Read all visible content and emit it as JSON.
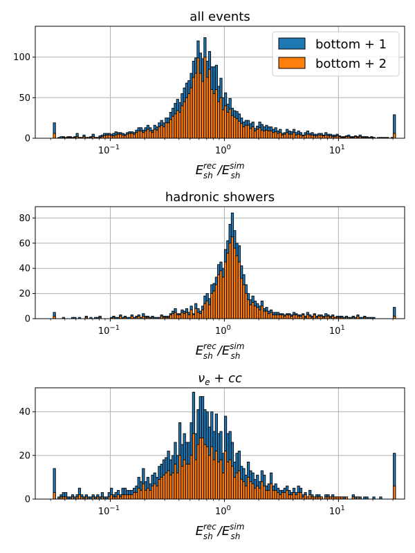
{
  "colors": {
    "series1": "#1f77b4",
    "series2": "#ff7f0e",
    "edge": "#000000",
    "grid": "#b0b0b0"
  },
  "legend": {
    "position": "top-right",
    "entries": [
      "bottom + 1",
      "bottom + 2"
    ]
  },
  "chart_data": [
    {
      "type": "bar",
      "title": "all events",
      "xlabel": "E_sh^rec / E_sh^sim",
      "x_scale": "log",
      "xlim": [
        0.022,
        38
      ],
      "ylim": [
        0,
        138
      ],
      "yticks": [
        0,
        50,
        100
      ],
      "xticks": [
        "10^-1",
        "10^0",
        "10^1"
      ],
      "grid": true,
      "bins": {
        "log10_start": -1.5,
        "log10_end": 1.5,
        "count": 150
      },
      "series": [
        {
          "name": "bottom + 1",
          "values": [
            19,
            0,
            1,
            2,
            2,
            1,
            2,
            2,
            1,
            2,
            6,
            1,
            1,
            4,
            1,
            1,
            2,
            5,
            1,
            1,
            3,
            4,
            6,
            6,
            6,
            5,
            6,
            8,
            7,
            7,
            6,
            5,
            7,
            8,
            8,
            7,
            10,
            13,
            13,
            10,
            13,
            16,
            13,
            10,
            16,
            14,
            19,
            22,
            19,
            25,
            25,
            32,
            37,
            43,
            48,
            44,
            55,
            62,
            68,
            71,
            80,
            95,
            99,
            120,
            105,
            98,
            124,
            95,
            107,
            88,
            88,
            90,
            64,
            74,
            50,
            56,
            42,
            49,
            37,
            34,
            33,
            30,
            25,
            20,
            22,
            22,
            18,
            20,
            12,
            15,
            20,
            17,
            14,
            16,
            14,
            14,
            11,
            13,
            9,
            11,
            6,
            7,
            11,
            9,
            8,
            11,
            7,
            9,
            7,
            4,
            7,
            9,
            6,
            7,
            5,
            5,
            6,
            6,
            4,
            7,
            5,
            5,
            4,
            4,
            5,
            3,
            2,
            2,
            3,
            4,
            2,
            2,
            3,
            2,
            4,
            2,
            2,
            2,
            1,
            2,
            1,
            0,
            1,
            1,
            1,
            1,
            1,
            0,
            1,
            29
          ]
        },
        {
          "name": "bottom + 2",
          "values": [
            6,
            0,
            0,
            0,
            1,
            1,
            1,
            1,
            1,
            1,
            2,
            1,
            1,
            2,
            1,
            1,
            1,
            2,
            1,
            1,
            1,
            2,
            3,
            4,
            4,
            3,
            3,
            4,
            5,
            5,
            4,
            3,
            5,
            6,
            6,
            5,
            7,
            9,
            9,
            7,
            9,
            11,
            9,
            7,
            11,
            10,
            14,
            16,
            14,
            19,
            19,
            23,
            27,
            30,
            34,
            32,
            40,
            45,
            50,
            55,
            62,
            75,
            80,
            99,
            80,
            70,
            100,
            75,
            85,
            60,
            55,
            60,
            45,
            50,
            35,
            40,
            32,
            36,
            28,
            26,
            24,
            21,
            18,
            14,
            16,
            16,
            12,
            14,
            9,
            11,
            13,
            10,
            9,
            10,
            9,
            9,
            7,
            8,
            6,
            7,
            4,
            5,
            7,
            5,
            5,
            7,
            4,
            5,
            4,
            3,
            4,
            5,
            4,
            4,
            3,
            3,
            4,
            4,
            3,
            4,
            3,
            3,
            2,
            2,
            3,
            2,
            1,
            1,
            2,
            2,
            1,
            1,
            2,
            1,
            2,
            1,
            1,
            1,
            1,
            1,
            1,
            0,
            0,
            1,
            0,
            0,
            1,
            0,
            0,
            6
          ]
        }
      ]
    },
    {
      "type": "bar",
      "title": "hadronic showers",
      "xlabel": "E_sh^rec / E_sh^sim",
      "x_scale": "log",
      "xlim": [
        0.022,
        38
      ],
      "ylim": [
        0,
        89
      ],
      "yticks": [
        0,
        20,
        40,
        60,
        80
      ],
      "xticks": [
        "10^-1",
        "10^0",
        "10^1"
      ],
      "grid": true,
      "bins": {
        "log10_start": -1.5,
        "log10_end": 1.5,
        "count": 150
      },
      "series": [
        {
          "name": "bottom + 1",
          "values": [
            5,
            0,
            0,
            0,
            1,
            0,
            0,
            0,
            1,
            1,
            0,
            1,
            0,
            0,
            2,
            0,
            1,
            0,
            1,
            1,
            2,
            0,
            0,
            0,
            0,
            1,
            2,
            1,
            1,
            3,
            1,
            2,
            1,
            1,
            3,
            1,
            2,
            3,
            1,
            4,
            2,
            2,
            1,
            2,
            1,
            1,
            1,
            3,
            2,
            2,
            2,
            4,
            6,
            8,
            4,
            4,
            7,
            6,
            8,
            5,
            10,
            4,
            12,
            8,
            6,
            10,
            18,
            20,
            16,
            27,
            28,
            33,
            43,
            45,
            40,
            55,
            62,
            75,
            84,
            70,
            60,
            58,
            42,
            35,
            27,
            20,
            15,
            18,
            14,
            12,
            10,
            14,
            8,
            9,
            6,
            7,
            5,
            5,
            5,
            4,
            4,
            3,
            4,
            4,
            3,
            5,
            4,
            3,
            3,
            4,
            2,
            5,
            3,
            2,
            4,
            2,
            3,
            3,
            2,
            4,
            3,
            2,
            3,
            1,
            2,
            2,
            2,
            1,
            2,
            1,
            1,
            2,
            1,
            3,
            1,
            1,
            2,
            1,
            1,
            1,
            1,
            0,
            0,
            0,
            0,
            0,
            0,
            0,
            0,
            9
          ]
        },
        {
          "name": "bottom + 2",
          "values": [
            2,
            0,
            0,
            0,
            0,
            0,
            0,
            0,
            0,
            0,
            0,
            0,
            0,
            0,
            1,
            0,
            0,
            0,
            0,
            0,
            1,
            0,
            0,
            0,
            0,
            0,
            1,
            0,
            0,
            2,
            0,
            1,
            0,
            0,
            2,
            0,
            1,
            2,
            0,
            2,
            1,
            1,
            0,
            1,
            0,
            0,
            0,
            2,
            1,
            1,
            1,
            3,
            4,
            5,
            3,
            3,
            5,
            4,
            5,
            3,
            7,
            3,
            8,
            5,
            4,
            7,
            12,
            14,
            11,
            20,
            22,
            27,
            35,
            38,
            33,
            45,
            52,
            60,
            65,
            56,
            50,
            45,
            32,
            27,
            20,
            15,
            11,
            13,
            10,
            9,
            7,
            10,
            6,
            6,
            4,
            5,
            3,
            3,
            3,
            3,
            3,
            2,
            3,
            3,
            2,
            3,
            3,
            2,
            2,
            3,
            1,
            3,
            2,
            1,
            3,
            1,
            2,
            2,
            1,
            2,
            2,
            1,
            2,
            1,
            1,
            1,
            1,
            0,
            1,
            0,
            0,
            1,
            0,
            2,
            0,
            0,
            1,
            0,
            0,
            0,
            0,
            0,
            0,
            0,
            0,
            0,
            0,
            0,
            0,
            2
          ]
        }
      ]
    },
    {
      "type": "bar",
      "title": "ν_e + cc",
      "xlabel": "E_sh^rec / E_sh^sim",
      "x_scale": "log",
      "xlim": [
        0.022,
        38
      ],
      "ylim": [
        0,
        51
      ],
      "yticks": [
        0,
        20,
        40
      ],
      "xticks": [
        "10^-1",
        "10^0",
        "10^1"
      ],
      "grid": true,
      "bins": {
        "log10_start": -1.5,
        "log10_end": 1.5,
        "count": 150
      },
      "series": [
        {
          "name": "bottom + 1",
          "values": [
            14,
            0,
            1,
            2,
            3,
            3,
            1,
            1,
            2,
            1,
            2,
            5,
            2,
            1,
            2,
            1,
            1,
            2,
            1,
            2,
            1,
            3,
            1,
            1,
            3,
            5,
            2,
            3,
            4,
            2,
            5,
            5,
            4,
            4,
            4,
            5,
            6,
            10,
            8,
            14,
            8,
            10,
            7,
            11,
            12,
            10,
            15,
            16,
            18,
            19,
            22,
            18,
            20,
            26,
            20,
            35,
            25,
            30,
            26,
            26,
            35,
            49,
            30,
            41,
            47,
            47,
            41,
            40,
            33,
            40,
            31,
            39,
            30,
            31,
            21,
            38,
            30,
            31,
            26,
            17,
            21,
            22,
            15,
            14,
            11,
            17,
            13,
            12,
            9,
            11,
            8,
            13,
            11,
            6,
            7,
            12,
            6,
            7,
            5,
            4,
            4,
            5,
            6,
            4,
            3,
            5,
            3,
            6,
            5,
            2,
            3,
            1,
            4,
            2,
            1,
            2,
            2,
            1,
            0,
            2,
            2,
            1,
            2,
            1,
            1,
            1,
            1,
            1,
            1,
            0,
            0,
            2,
            1,
            1,
            1,
            0,
            1,
            1,
            0,
            0,
            1,
            0,
            0,
            1,
            0,
            0,
            0,
            0,
            0,
            21
          ]
        },
        {
          "name": "bottom + 2",
          "values": [
            3,
            0,
            0,
            1,
            1,
            1,
            0,
            0,
            1,
            0,
            1,
            2,
            1,
            0,
            1,
            0,
            0,
            1,
            0,
            1,
            0,
            1,
            0,
            0,
            1,
            2,
            1,
            1,
            2,
            1,
            2,
            2,
            2,
            2,
            2,
            3,
            3,
            5,
            4,
            7,
            4,
            5,
            4,
            6,
            7,
            6,
            9,
            10,
            11,
            12,
            13,
            11,
            12,
            16,
            12,
            20,
            15,
            18,
            16,
            16,
            20,
            30,
            18,
            25,
            28,
            28,
            25,
            24,
            20,
            24,
            18,
            22,
            17,
            18,
            12,
            22,
            17,
            18,
            15,
            10,
            12,
            13,
            9,
            8,
            6,
            10,
            8,
            7,
            5,
            6,
            5,
            8,
            6,
            4,
            4,
            7,
            4,
            4,
            3,
            2,
            3,
            3,
            4,
            2,
            2,
            3,
            2,
            3,
            3,
            1,
            2,
            1,
            2,
            1,
            1,
            1,
            1,
            1,
            0,
            1,
            1,
            1,
            1,
            1,
            1,
            1,
            1,
            0,
            1,
            0,
            0,
            1,
            0,
            1,
            0,
            0,
            0,
            0,
            0,
            0,
            0,
            0,
            0,
            0,
            0,
            0,
            0,
            0,
            0,
            6
          ]
        }
      ]
    }
  ]
}
